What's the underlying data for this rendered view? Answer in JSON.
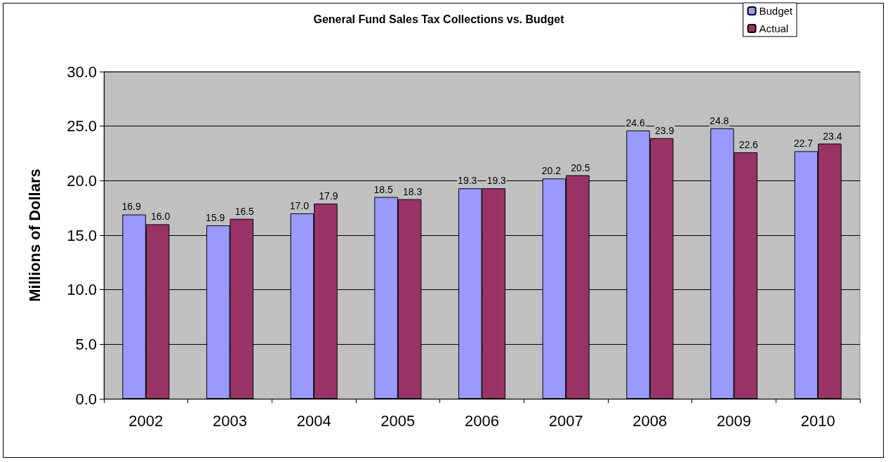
{
  "chart_data": {
    "type": "bar",
    "title": "General Fund Sales Tax Collections vs. Budget",
    "ylabel": "Millions of Dollars",
    "categories": [
      "2002",
      "2003",
      "2004",
      "2005",
      "2006",
      "2007",
      "2008",
      "2009",
      "2010"
    ],
    "series": [
      {
        "name": "Budget",
        "color": "#9999ff",
        "values": [
          16.9,
          15.9,
          17.0,
          18.5,
          19.3,
          20.2,
          24.6,
          24.8,
          22.7
        ],
        "value_labels": [
          "16.9",
          "15.9",
          "17.0",
          "18.5",
          "19.3",
          "20.2",
          "24.6",
          "24.8",
          "22.7"
        ]
      },
      {
        "name": "Actual",
        "color": "#993366",
        "values": [
          16.0,
          16.5,
          17.9,
          18.3,
          19.3,
          20.5,
          23.9,
          22.6,
          23.4
        ],
        "value_labels": [
          "16.0",
          "16.5",
          "17.9",
          "18.3",
          "19.3",
          "20.5",
          "23.9",
          "22.6",
          "23.4"
        ]
      }
    ],
    "ylim": [
      0,
      30
    ],
    "yticks": [
      {
        "value": 0,
        "label": "0.0"
      },
      {
        "value": 5,
        "label": "5.0"
      },
      {
        "value": 10,
        "label": "10.0"
      },
      {
        "value": 15,
        "label": "15.0"
      },
      {
        "value": 20,
        "label": "20.0"
      },
      {
        "value": 25,
        "label": "25.0"
      },
      {
        "value": 30,
        "label": "30.0"
      }
    ],
    "grid": "y",
    "legend": "top right"
  }
}
